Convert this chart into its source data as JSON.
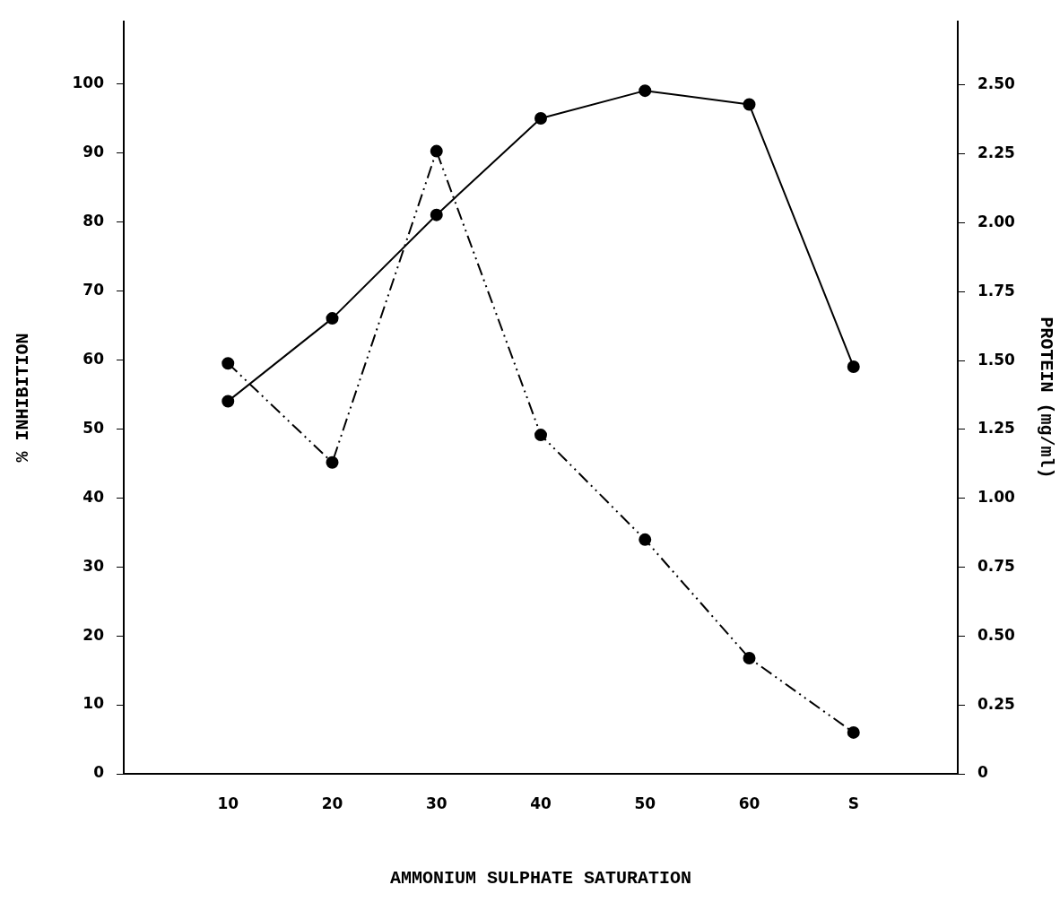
{
  "chart_data": {
    "type": "line",
    "xlabel": "AMMONIUM SULPHATE SATURATION",
    "ylabel": "% INHIBITION",
    "y2label": "PROTEIN (mg/ml)",
    "categories": [
      "10",
      "20",
      "30",
      "40",
      "50",
      "60",
      "S"
    ],
    "series": [
      {
        "color": "#000000",
        "line_style": "solid",
        "values": [
          54,
          66,
          81,
          95,
          99,
          97,
          59
        ]
      },
      {
        "color": "#000000",
        "line_style": "dashed",
        "axis": "y2",
        "values": [
          1.49,
          1.13,
          2.26,
          1.23,
          0.85,
          0.42,
          0.15
        ]
      }
    ],
    "ylim": [
      0,
      109
    ],
    "yticks": [
      0,
      10,
      20,
      30,
      40,
      50,
      60,
      70,
      80,
      90,
      100
    ],
    "y2lim": [
      0,
      2.73
    ],
    "y2ticks": [
      0,
      {
        "value": 0.25,
        "label": "0.25"
      },
      {
        "value": 0.5,
        "label": "0.50"
      },
      {
        "value": 0.75,
        "label": "0.75"
      },
      {
        "value": 1,
        "label": "1.00"
      },
      {
        "value": 1.25,
        "label": "1.25"
      },
      {
        "value": 1.5,
        "label": "1.50"
      },
      {
        "value": 1.75,
        "label": "1.75"
      },
      {
        "value": 2,
        "label": "2.00"
      },
      {
        "value": 2.25,
        "label": "2.25"
      },
      {
        "value": 2.5,
        "label": "2.50"
      }
    ],
    "grid": false,
    "legend": false,
    "marker": "circle"
  }
}
